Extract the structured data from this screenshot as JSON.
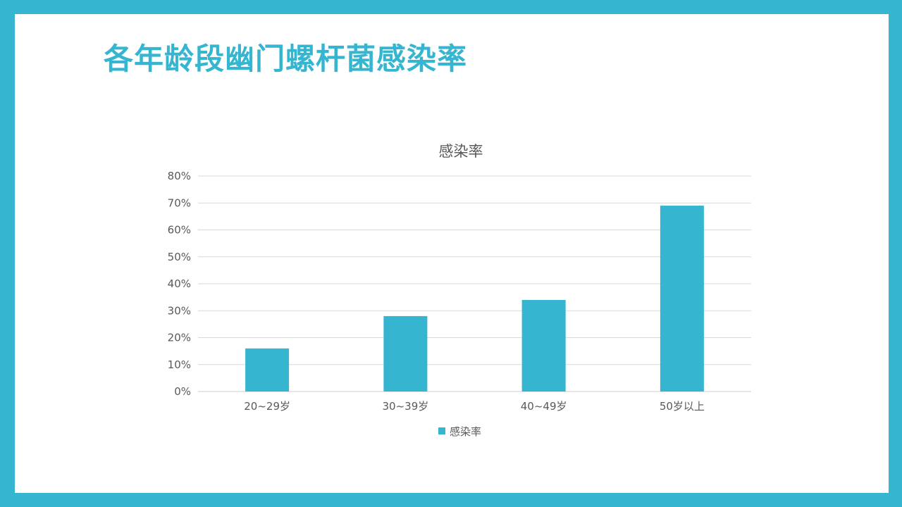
{
  "slide": {
    "title": "各年龄段幽门螺杆菌感染率"
  },
  "colors": {
    "frame": "#35b5cf",
    "bar": "#35b5cf",
    "title": "#35b5cf"
  },
  "chart_data": {
    "type": "bar",
    "title": "感染率",
    "categories": [
      "20~29岁",
      "30~39岁",
      "40~49岁",
      "50岁以上"
    ],
    "series": [
      {
        "name": "感染率",
        "values": [
          16,
          28,
          34,
          69
        ]
      }
    ],
    "y_unit": "%",
    "ylim": [
      0,
      80
    ],
    "yticks": [
      0,
      10,
      20,
      30,
      40,
      50,
      60,
      70,
      80
    ],
    "ytick_labels": [
      "0%",
      "10%",
      "20%",
      "30%",
      "40%",
      "50%",
      "60%",
      "70%",
      "80%"
    ],
    "xlabel": "",
    "ylabel": "",
    "grid": true,
    "legend_position": "bottom"
  }
}
